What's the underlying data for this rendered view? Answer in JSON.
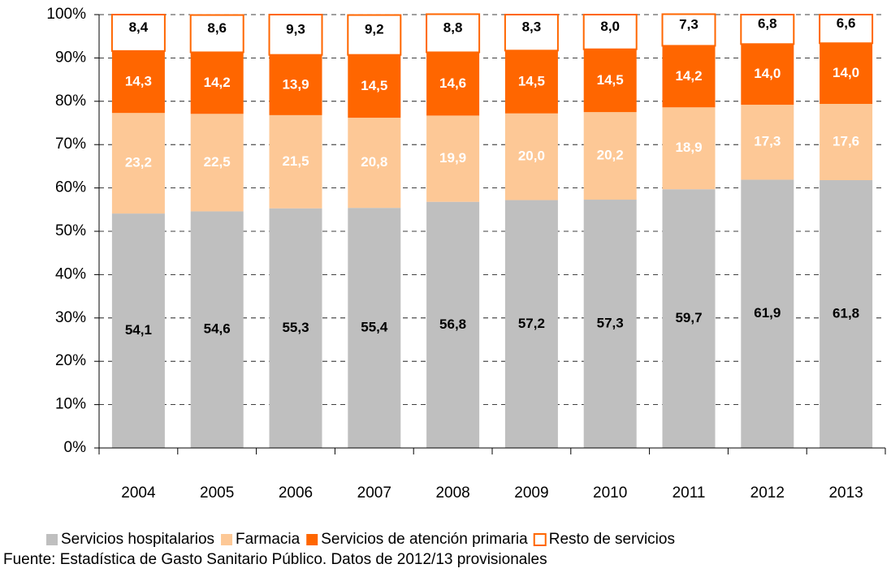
{
  "chart_data": {
    "type": "stacked_bar",
    "categories": [
      "2004",
      "2005",
      "2006",
      "2007",
      "2008",
      "2009",
      "2010",
      "2011",
      "2012",
      "2013"
    ],
    "series": [
      {
        "name": "Servicios hospitalarios",
        "color": "#bfbfbf",
        "label_color": "#000000",
        "values": [
          54.1,
          54.6,
          55.3,
          55.4,
          56.8,
          57.2,
          57.3,
          59.7,
          61.9,
          61.8
        ],
        "value_labels": [
          "54,1",
          "54,6",
          "55,3",
          "55,4",
          "56,8",
          "57,2",
          "57,3",
          "59,7",
          "61,9",
          "61,8"
        ]
      },
      {
        "name": "Farmacia",
        "color": "#fdc896",
        "label_color": "#ffffff",
        "values": [
          23.2,
          22.5,
          21.5,
          20.8,
          19.9,
          20.0,
          20.2,
          18.9,
          17.3,
          17.6
        ],
        "value_labels": [
          "23,2",
          "22,5",
          "21,5",
          "20,8",
          "19,9",
          "20,0",
          "20,2",
          "18,9",
          "17,3",
          "17,6"
        ]
      },
      {
        "name": "Servicios de atención primaria",
        "color": "#ff6600",
        "label_color": "#ffffff",
        "values": [
          14.3,
          14.2,
          13.9,
          14.5,
          14.6,
          14.5,
          14.5,
          14.2,
          14.0,
          14.0
        ],
        "value_labels": [
          "14,3",
          "14,2",
          "13,9",
          "14,5",
          "14,6",
          "14,5",
          "14,5",
          "14,2",
          "14,0",
          "14,0"
        ]
      },
      {
        "name": "Resto de servicios",
        "color": "#ff6600",
        "style": "outline",
        "label_color": "#000000",
        "values": [
          8.4,
          8.6,
          9.3,
          9.2,
          8.8,
          8.3,
          8.0,
          7.3,
          6.8,
          6.6
        ],
        "value_labels": [
          "8,4",
          "8,6",
          "9,3",
          "9,2",
          "8,8",
          "8,3",
          "8,0",
          "7,3",
          "6,8",
          "6,6"
        ]
      }
    ],
    "ylim": [
      0,
      100
    ],
    "yticks": [
      {
        "value": 0,
        "label": "0%"
      },
      {
        "value": 10,
        "label": "10%"
      },
      {
        "value": 20,
        "label": "20%"
      },
      {
        "value": 30,
        "label": "30%"
      },
      {
        "value": 40,
        "label": "40%"
      },
      {
        "value": 50,
        "label": "50%"
      },
      {
        "value": 60,
        "label": "60%"
      },
      {
        "value": 70,
        "label": "70%"
      },
      {
        "value": 80,
        "label": "80%"
      },
      {
        "value": 90,
        "label": "90%"
      },
      {
        "value": 100,
        "label": "100%"
      }
    ],
    "grid": true,
    "legend": "bottom",
    "source": "Fuente: Estadística de Gasto Sanitario Público. Datos de 2012/13 provisionales"
  }
}
